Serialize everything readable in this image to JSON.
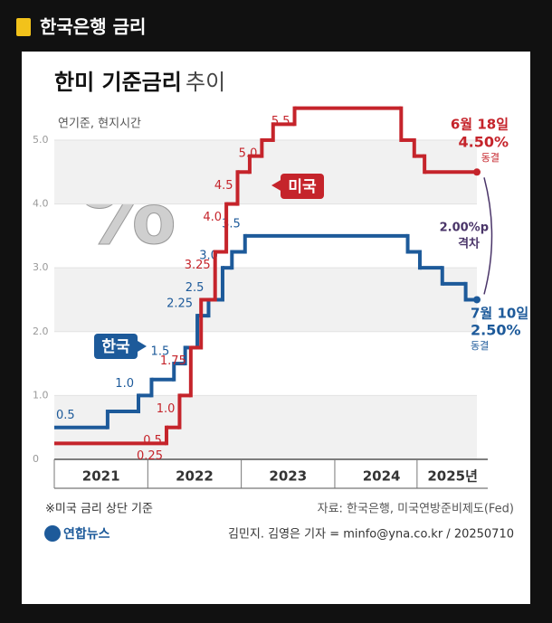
{
  "header": {
    "title": "한국은행 금리"
  },
  "chart_data": {
    "type": "step",
    "title": "한미 기준금리",
    "title_suffix": "추이",
    "subtitle": "연기준, 현지시간",
    "symbol": "%",
    "xlim": [
      2021,
      2025.52
    ],
    "xticks": [
      {
        "value": 2021.5,
        "label": "2021"
      },
      {
        "value": 2022.5,
        "label": "2022"
      },
      {
        "value": 2023.5,
        "label": "2023"
      },
      {
        "value": 2024.5,
        "label": "2024"
      },
      {
        "value": 2025.26,
        "label": "2025년"
      }
    ],
    "ylim": [
      0,
      5.6
    ],
    "yticks": [
      0,
      {
        "value": 1,
        "label": "1.0"
      },
      {
        "value": 2,
        "label": "2.0"
      },
      {
        "value": 3,
        "label": "3.0"
      },
      {
        "value": 4,
        "label": "4.0"
      },
      {
        "value": 5,
        "label": "5.0"
      }
    ],
    "grid": true,
    "series": [
      {
        "name": "한국",
        "color": "#1d5a9a",
        "x": [
          2021,
          2021.57,
          2021.9,
          2022.04,
          2022.28,
          2022.4,
          2022.53,
          2022.65,
          2022.8,
          2022.9,
          2023.04,
          2024.78,
          2024.91,
          2025.15,
          2025.4,
          2025.52
        ],
        "values": [
          0.5,
          0.75,
          1.0,
          1.25,
          1.5,
          1.75,
          2.25,
          2.5,
          3.0,
          3.25,
          3.5,
          3.25,
          3.0,
          2.75,
          2.5,
          2.5
        ],
        "value_labels": [
          "0.5",
          null,
          "1.0",
          null,
          "1.5",
          null,
          "2.25",
          "2.5",
          "3.0",
          null,
          "3.5",
          null,
          null,
          null,
          null,
          null
        ]
      },
      {
        "name": "미국",
        "color": "#c5242b",
        "x": [
          2021,
          2022.2,
          2022.34,
          2022.46,
          2022.57,
          2022.72,
          2022.84,
          2022.96,
          2023.09,
          2023.22,
          2023.34,
          2023.57,
          2024.71,
          2024.85,
          2024.96,
          2025.52
        ],
        "values": [
          0.25,
          0.5,
          1.0,
          1.75,
          2.5,
          3.25,
          4.0,
          4.5,
          4.75,
          5.0,
          5.25,
          5.5,
          5.0,
          4.75,
          4.5,
          4.5
        ],
        "value_labels": [
          "0.25",
          "0.5",
          "1.0",
          "1.75",
          null,
          "3.25",
          "4.0",
          "4.5",
          null,
          "5.0",
          null,
          "5.5",
          null,
          null,
          null,
          null
        ]
      }
    ],
    "annotations": {
      "us_end": {
        "date": "6월 18일",
        "value": "4.50%",
        "status": "동결"
      },
      "kr_end": {
        "date": "7월 10일",
        "value": "2.50%",
        "status": "동결"
      },
      "gap": {
        "value": "2.00%p",
        "label": "격차"
      }
    },
    "footnote": "※미국 금리 상단 기준",
    "source": "자료: 한국은행, 미국연방준비제도(Fed)",
    "byline": "김민지. 김영은 기자 = minfo@yna.co.kr / 20250710",
    "logo": "연합뉴스"
  }
}
